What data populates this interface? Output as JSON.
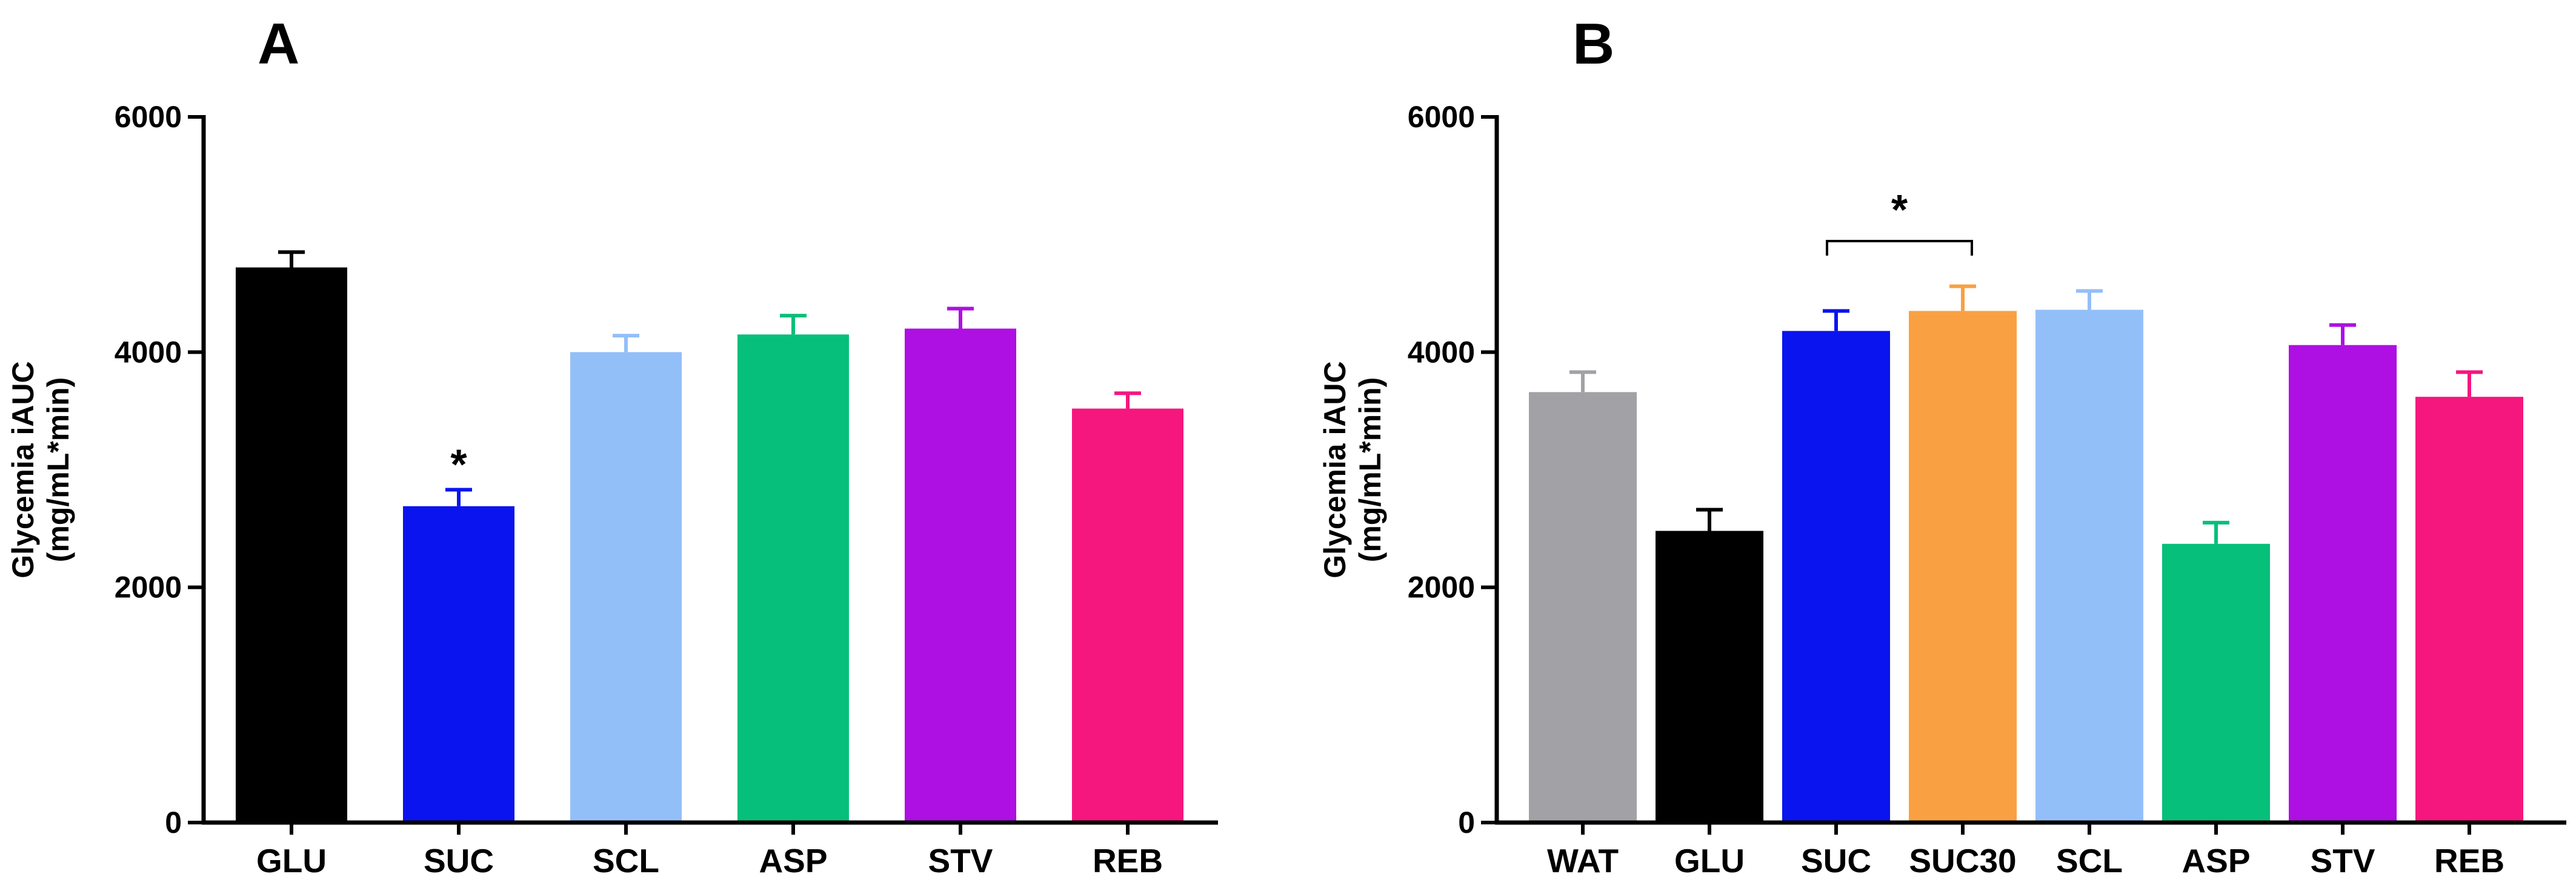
{
  "chart_data": [
    {
      "panel": "A",
      "type": "bar",
      "title": "",
      "ylabel_line1": "Glycemia iAUC",
      "ylabel_line2": "(mg/mL*min)",
      "xlabel": "",
      "ylim": [
        0,
        6000
      ],
      "yticks": [
        0,
        2000,
        4000,
        6000
      ],
      "grid": false,
      "categories": [
        "GLU",
        "SUC",
        "SCL",
        "ASP",
        "STV",
        "REB"
      ],
      "values": [
        4720,
        2690,
        4000,
        4150,
        4200,
        3520
      ],
      "errors": [
        130,
        140,
        140,
        160,
        170,
        130
      ],
      "colors": [
        "#000000",
        "#0a14ee",
        "#93bff8",
        "#06bf7a",
        "#ae0fe2",
        "#f5177e"
      ],
      "annotations": [
        {
          "text": "*",
          "category": "SUC"
        }
      ]
    },
    {
      "panel": "B",
      "type": "bar",
      "title": "",
      "ylabel_line1": "Glycemia iAUC",
      "ylabel_line2": "(mg/mL*min)",
      "xlabel": "",
      "ylim": [
        0,
        6000
      ],
      "yticks": [
        0,
        2000,
        4000,
        6000
      ],
      "grid": false,
      "categories": [
        "WAT",
        "GLU",
        "SUC",
        "SUC30",
        "SCL",
        "ASP",
        "STV",
        "REB"
      ],
      "values": [
        3660,
        2480,
        4180,
        4350,
        4360,
        2370,
        4060,
        3620
      ],
      "errors": [
        170,
        180,
        170,
        210,
        160,
        180,
        170,
        210
      ],
      "colors": [
        "#a2a1a6",
        "#000000",
        "#0a14ee",
        "#f9a042",
        "#93bff8",
        "#06bf7a",
        "#ae0fe2",
        "#f5177e"
      ],
      "annotations": [
        {
          "text": "*",
          "bracket": [
            "SUC",
            "SUC30"
          ]
        }
      ]
    }
  ]
}
